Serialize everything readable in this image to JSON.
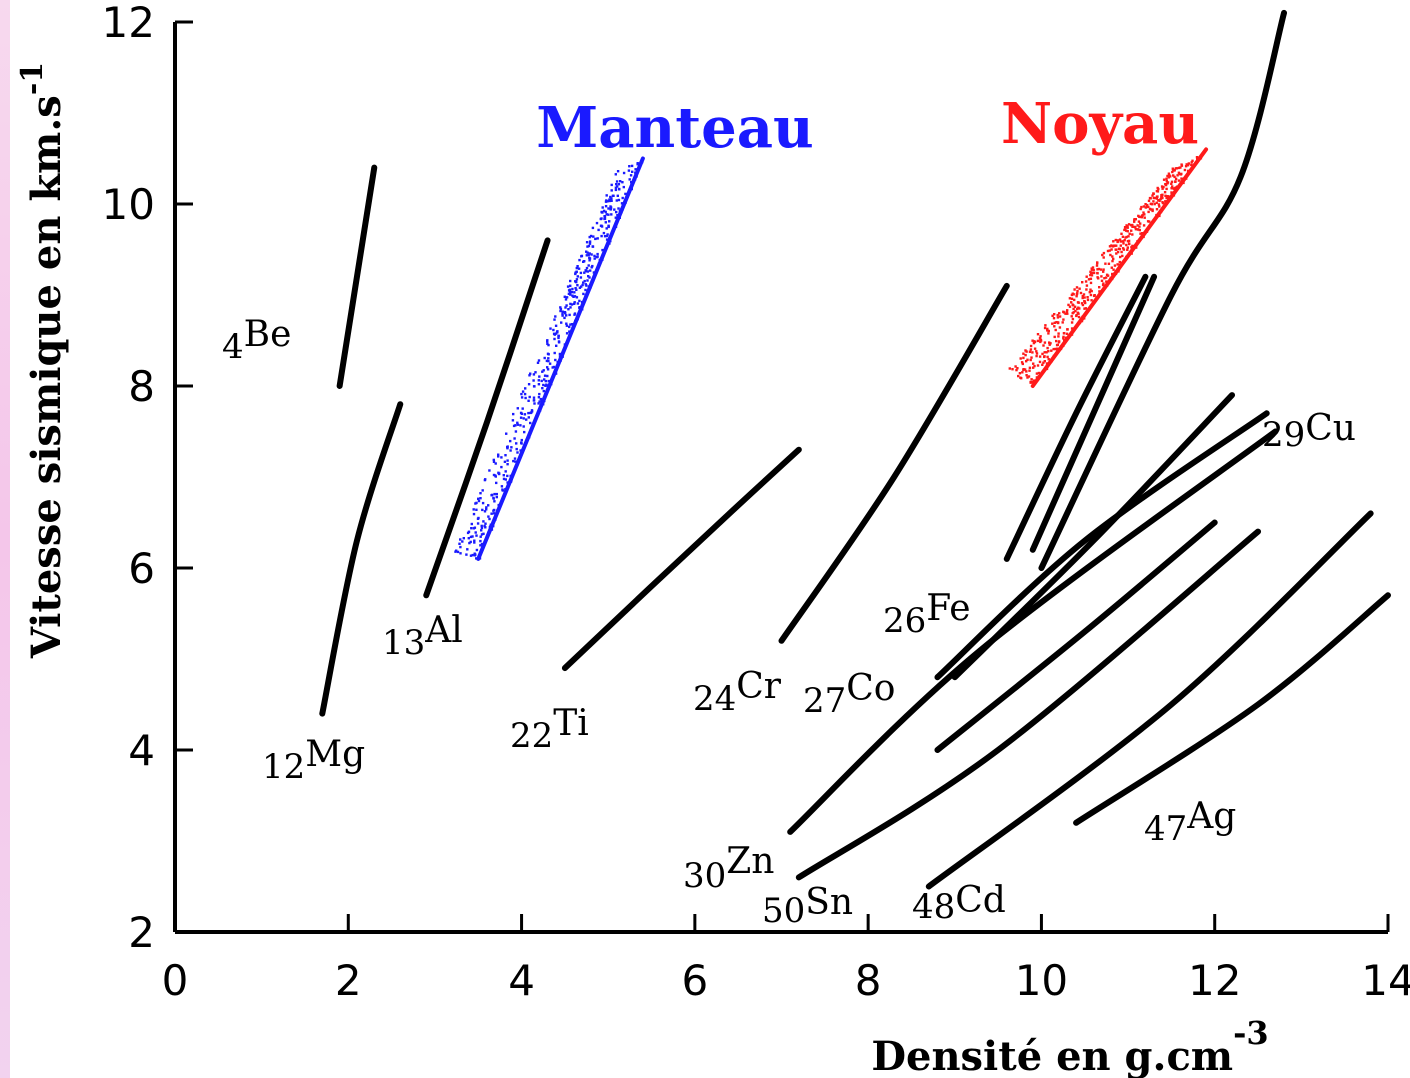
{
  "chart_data": {
    "type": "line",
    "xlabel": "Densité en g.cm",
    "xlabel_sup": "-3",
    "ylabel": "Vitesse sismique en km.s",
    "ylabel_sup": "-1",
    "xlim": [
      0,
      14
    ],
    "ylim": [
      2,
      12
    ],
    "xticks": [
      "0",
      "2",
      "4",
      "6",
      "8",
      "10",
      "12",
      "14"
    ],
    "yticks": [
      "2",
      "4",
      "6",
      "8",
      "10",
      "12"
    ],
    "series": [
      {
        "z": "4",
        "sym": "Be",
        "points": [
          [
            1.9,
            8.0
          ],
          [
            2.3,
            10.4
          ]
        ]
      },
      {
        "z": "12",
        "sym": "Mg",
        "points": [
          [
            1.7,
            4.4
          ],
          [
            2.1,
            6.3
          ],
          [
            2.6,
            7.8
          ]
        ]
      },
      {
        "z": "13",
        "sym": "Al",
        "points": [
          [
            2.9,
            5.7
          ],
          [
            3.6,
            7.6
          ],
          [
            4.3,
            9.6
          ]
        ]
      },
      {
        "z": "22",
        "sym": "Ti",
        "points": [
          [
            4.5,
            4.9
          ],
          [
            5.5,
            5.8
          ],
          [
            6.4,
            6.6
          ],
          [
            7.2,
            7.3
          ]
        ]
      },
      {
        "z": "24",
        "sym": "Cr",
        "points": [
          [
            7.0,
            5.2
          ],
          [
            8.3,
            7.0
          ],
          [
            9.6,
            9.1
          ]
        ]
      },
      {
        "z": "26",
        "sym": "Fe",
        "points": [
          [
            9.6,
            6.1
          ],
          [
            10.4,
            7.7
          ],
          [
            11.2,
            9.2
          ]
        ]
      },
      {
        "z": "27",
        "sym": "Co",
        "points": [
          [
            9.9,
            6.2
          ],
          [
            10.6,
            7.7
          ],
          [
            11.3,
            9.2
          ]
        ]
      },
      {
        "z": "29",
        "sym": "Cu",
        "points": [
          [
            8.8,
            4.8
          ],
          [
            10.5,
            6.3
          ],
          [
            12.6,
            7.7
          ]
        ]
      },
      {
        "z": "",
        "sym": "",
        "points": [
          [
            9.0,
            4.8
          ],
          [
            10.6,
            6.3
          ],
          [
            12.2,
            7.9
          ]
        ]
      },
      {
        "z": "",
        "sym": "",
        "points": [
          [
            10.0,
            6.0
          ],
          [
            11.5,
            9.0
          ],
          [
            12.3,
            10.3
          ],
          [
            12.8,
            12.1
          ]
        ]
      },
      {
        "z": "30",
        "sym": "Zn",
        "points": [
          [
            7.1,
            3.1
          ],
          [
            9.3,
            5.1
          ],
          [
            12.7,
            7.5
          ]
        ]
      },
      {
        "z": "50",
        "sym": "Sn",
        "points": [
          [
            7.2,
            2.6
          ],
          [
            9.5,
            4.0
          ],
          [
            12.5,
            6.4
          ]
        ]
      },
      {
        "z": "",
        "sym": "",
        "points": [
          [
            8.8,
            4.0
          ],
          [
            10.5,
            5.3
          ],
          [
            12.0,
            6.5
          ]
        ]
      },
      {
        "z": "48",
        "sym": "Cd",
        "points": [
          [
            8.7,
            2.5
          ],
          [
            11.5,
            4.5
          ],
          [
            13.8,
            6.6
          ]
        ]
      },
      {
        "z": "47",
        "sym": "Ag",
        "points": [
          [
            10.4,
            3.2
          ],
          [
            12.5,
            4.5
          ],
          [
            14.0,
            5.7
          ]
        ]
      }
    ],
    "regions": [
      {
        "name": "Manteau",
        "color": "#1a1aff",
        "lower": [
          [
            3.5,
            6.1
          ],
          [
            5.4,
            10.5
          ]
        ],
        "upper": [
          [
            3.2,
            6.2
          ],
          [
            5.1,
            10.4
          ]
        ]
      },
      {
        "name": "Noyau",
        "color": "#ff1a1a",
        "lower": [
          [
            9.9,
            8.0
          ],
          [
            11.9,
            10.6
          ]
        ],
        "upper": [
          [
            9.6,
            8.2
          ],
          [
            11.5,
            10.4
          ]
        ]
      }
    ]
  }
}
